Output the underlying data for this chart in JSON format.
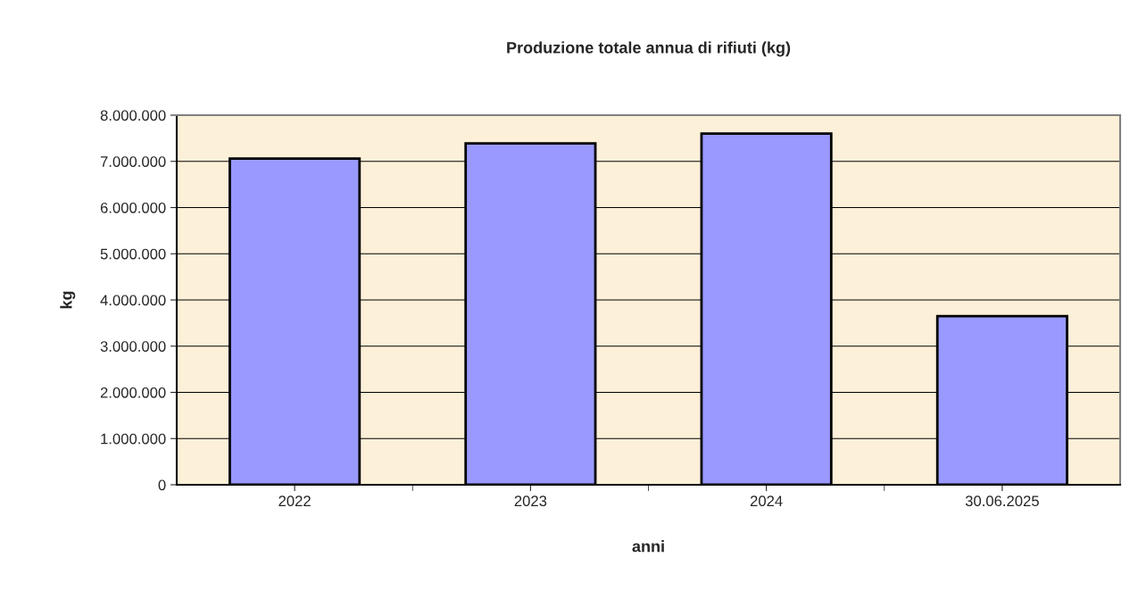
{
  "chart_data": {
    "type": "bar",
    "title": "Produzione totale annua di rifiuti (kg)",
    "xlabel": "anni",
    "ylabel": "kg",
    "categories": [
      "2022",
      "2023",
      "2024",
      "30.06.2025"
    ],
    "values": [
      7060000,
      7390000,
      7600000,
      3650000
    ],
    "color": "#9999ff",
    "ylim": [
      0,
      8000000
    ],
    "yticks": [
      {
        "value": 0,
        "label": "0"
      },
      {
        "value": 1000000,
        "label": "1.000.000"
      },
      {
        "value": 2000000,
        "label": "2.000.000"
      },
      {
        "value": 3000000,
        "label": "3.000.000"
      },
      {
        "value": 4000000,
        "label": "4.000.000"
      },
      {
        "value": 5000000,
        "label": "5.000.000"
      },
      {
        "value": 6000000,
        "label": "6.000.000"
      },
      {
        "value": 7000000,
        "label": "7.000.000"
      },
      {
        "value": 8000000,
        "label": "8.000.000"
      }
    ],
    "grid": "y",
    "legend": false
  }
}
